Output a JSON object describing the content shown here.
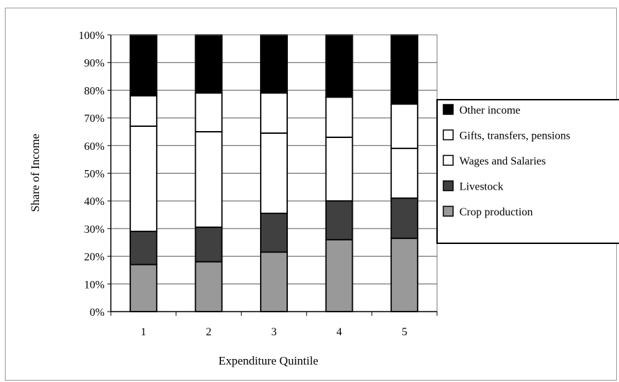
{
  "chart_data": {
    "type": "bar",
    "stacked": true,
    "percent": true,
    "xlabel": "Expenditure Quintile",
    "ylabel": "Share of Income",
    "categories": [
      "1",
      "2",
      "3",
      "4",
      "5"
    ],
    "ylim": [
      0,
      100
    ],
    "yticks": [
      "0%",
      "10%",
      "20%",
      "30%",
      "40%",
      "50%",
      "60%",
      "70%",
      "80%",
      "90%",
      "100%"
    ],
    "grid": true,
    "legend_position": "right",
    "series": [
      {
        "name": "Crop production",
        "color": "#999999",
        "values": [
          17,
          18,
          21.5,
          26,
          26.5
        ]
      },
      {
        "name": "Livestock",
        "color": "#404040",
        "values": [
          12,
          12.5,
          14,
          14,
          14.5
        ]
      },
      {
        "name": "Wages and Salaries",
        "color": "#ffffff",
        "values": [
          38,
          34.5,
          29,
          23,
          18
        ]
      },
      {
        "name": "Gifts, transfers, pensions",
        "color": "#ffffff",
        "values": [
          11,
          14,
          14.5,
          14.5,
          16
        ]
      },
      {
        "name": "Other income",
        "color": "#000000",
        "values": [
          22,
          21,
          21,
          22.5,
          25
        ]
      }
    ],
    "legend_order": [
      "Other income",
      "Gifts, transfers, pensions",
      "Wages and Salaries",
      "Livestock",
      "Crop production"
    ]
  }
}
